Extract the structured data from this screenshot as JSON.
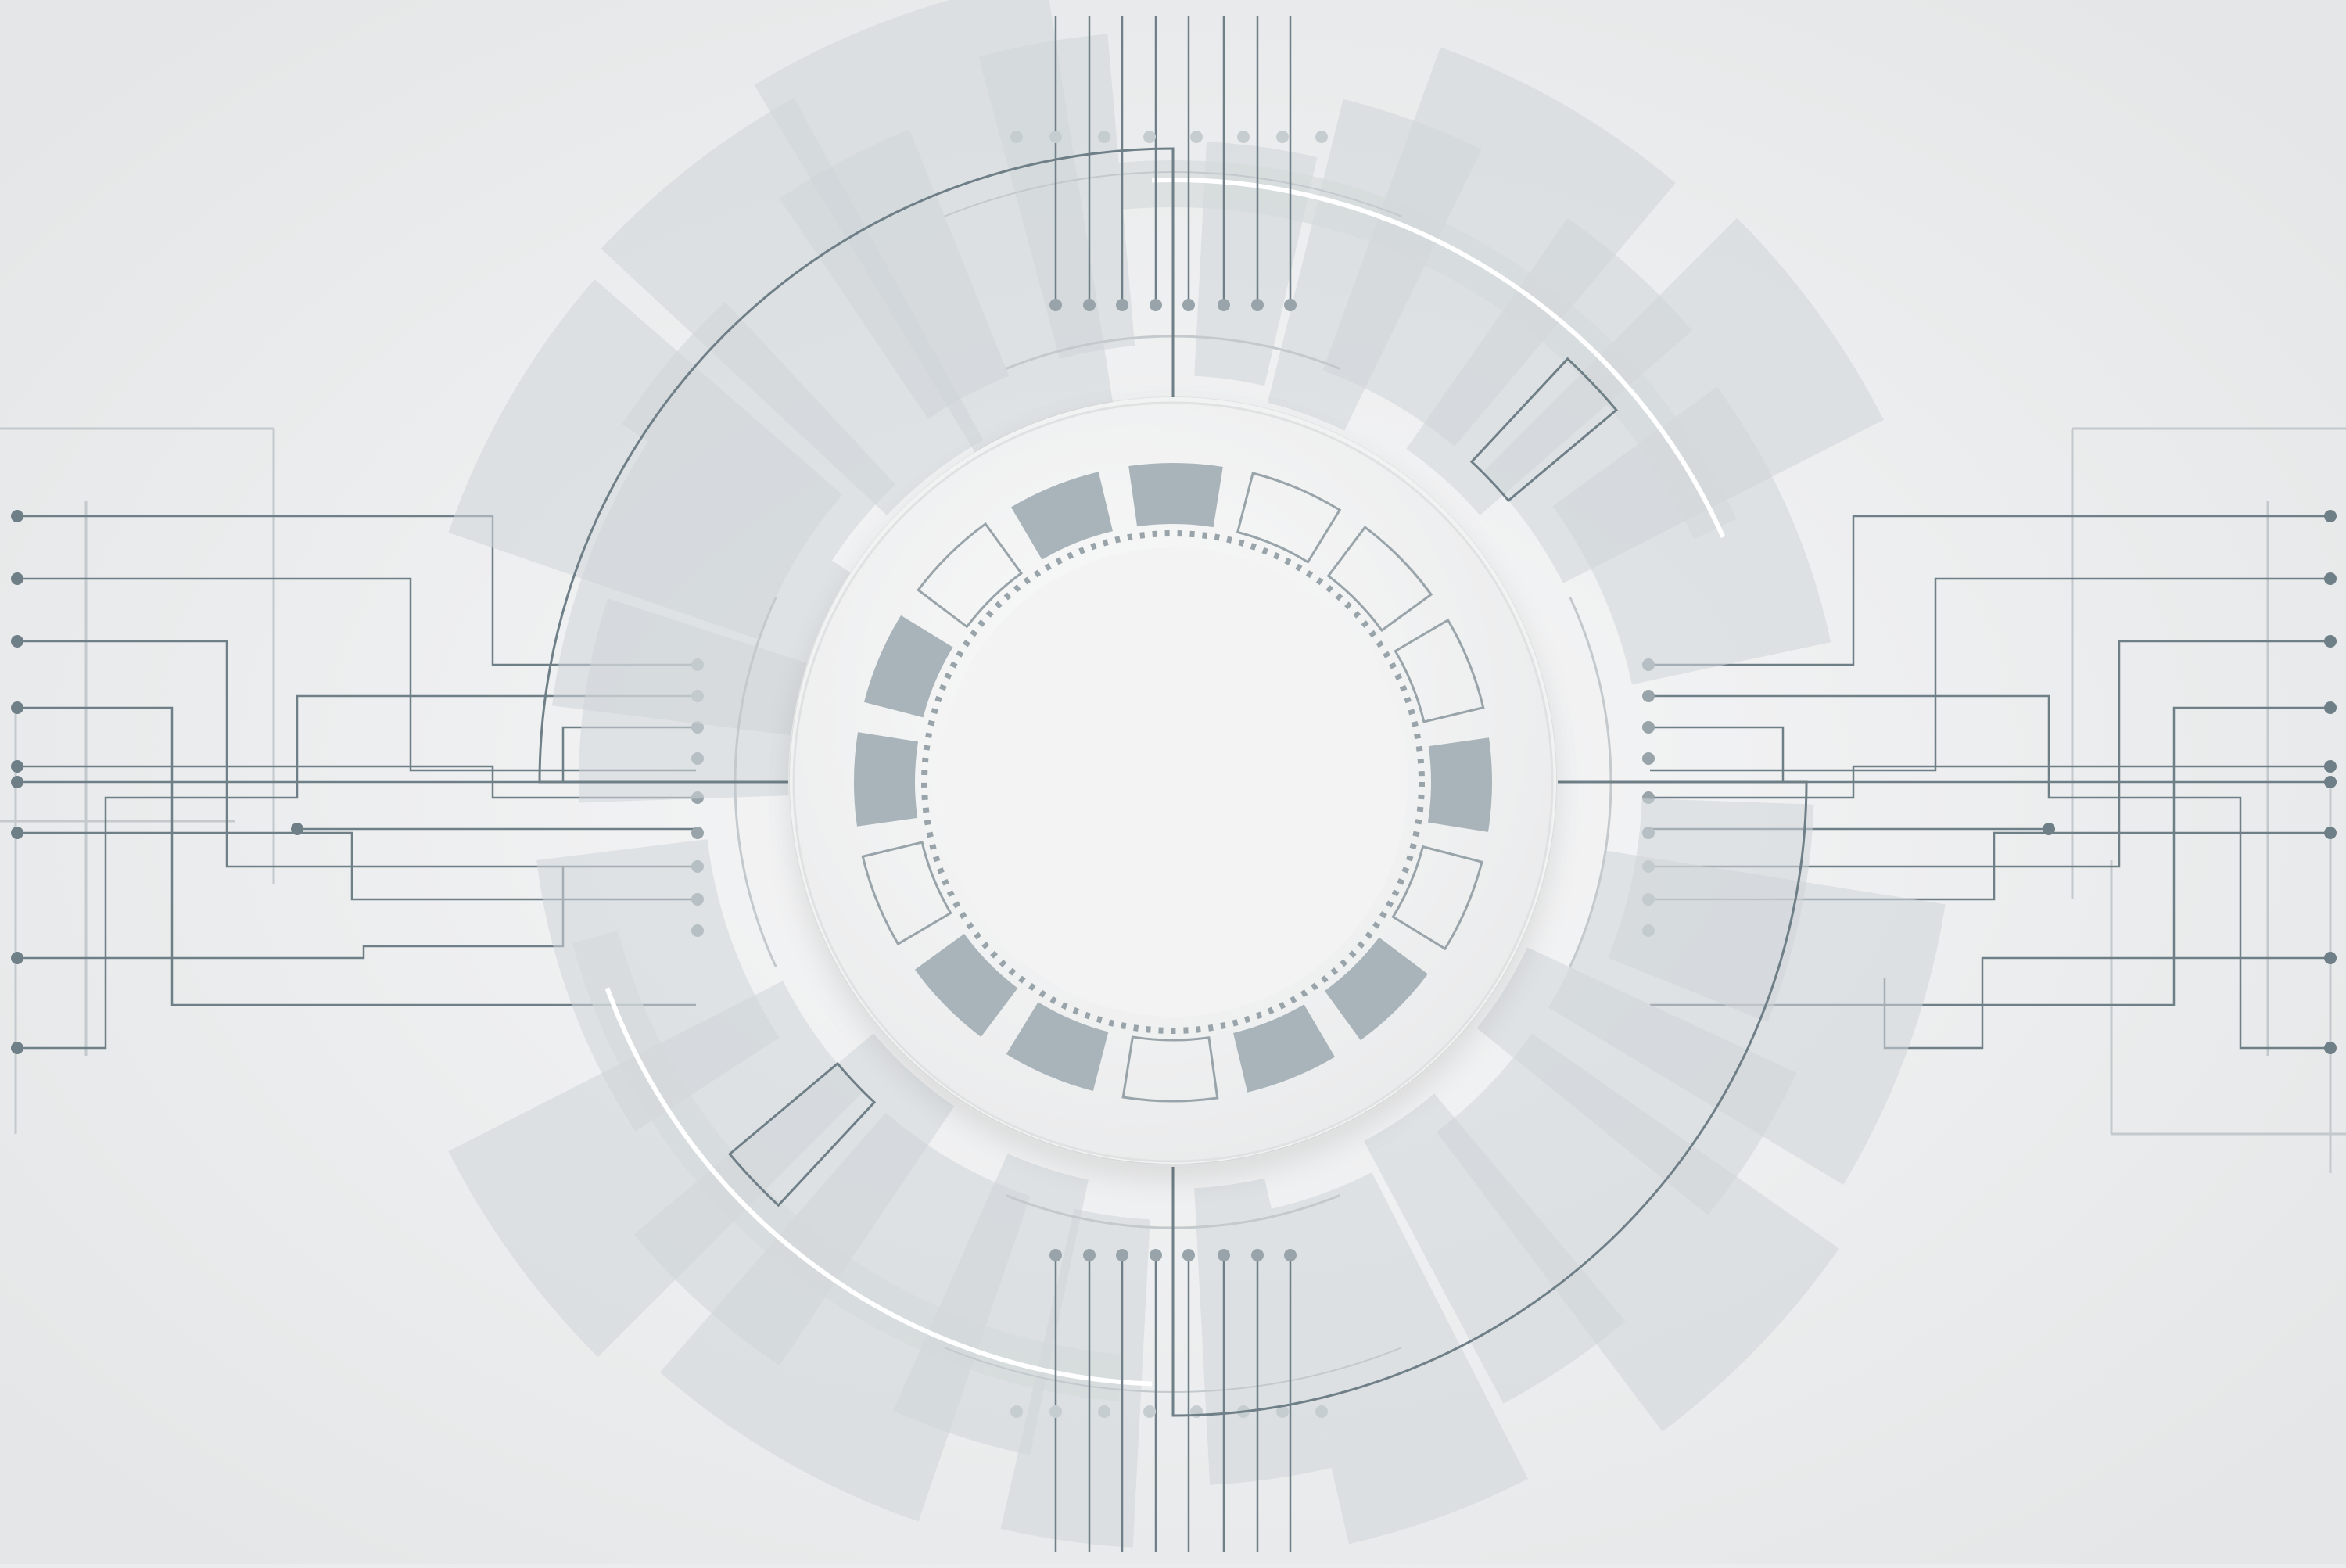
{
  "artwork": {
    "kind": "abstract-tech-circuit-background",
    "palette": {
      "background": "#ebeced",
      "background_light": "#f6f6f7",
      "line": "#6f7f87",
      "line_light": "#c3c9cc",
      "segment_fill": "#a9b4ba",
      "segment_outline": "#98a4aa",
      "ray": "#cfd5d8",
      "hub": "#f4f4f5"
    },
    "icons": [
      "circuit-hub",
      "circuit-lines",
      "radial-rays",
      "segment-ring",
      "dotted-ring"
    ]
  }
}
